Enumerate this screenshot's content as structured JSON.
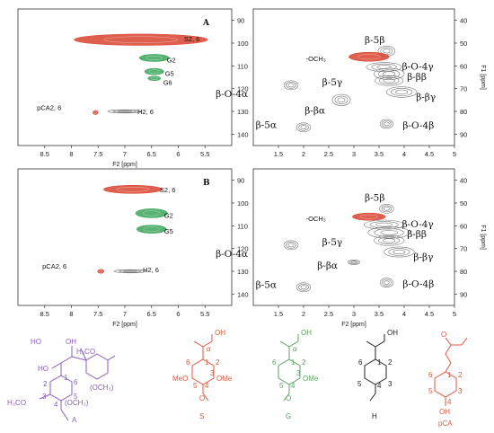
{
  "colors": {
    "red": "#d9432f",
    "green": "#3aa55a",
    "gray": "#8a8a8a",
    "purple": "#8a5cc2",
    "orange": "#e0573a",
    "struct_green": "#5aa463",
    "black": "#222222"
  },
  "chart_data": [
    {
      "type": "scatter",
      "panel_label": "A",
      "xlabel": "F2 [ppm]",
      "ylabel": "",
      "xlim": [
        9.0,
        5.0
      ],
      "ylim": [
        145,
        85
      ],
      "x_ticks": [
        "8.5",
        "8",
        "7.5",
        "7",
        "6.5",
        "6",
        "5.5"
      ],
      "y_ticks": [
        "90",
        "100",
        "110",
        "120",
        "130",
        "140"
      ],
      "peaks": [
        {
          "label": "S2, 6",
          "x": 6.7,
          "y": 98.5,
          "color": "red"
        },
        {
          "label": "G2",
          "x": 6.45,
          "y": 106.5,
          "color": "green"
        },
        {
          "label": "G5",
          "x": 6.45,
          "y": 112.5,
          "color": "green"
        },
        {
          "label": "G6",
          "x": 6.45,
          "y": 115.5,
          "color": "green"
        },
        {
          "label": "pCA2, 6",
          "x": 7.55,
          "y": 130.5,
          "color": "red"
        },
        {
          "label": "H2, 6",
          "x": 7.0,
          "y": 130.0,
          "color": "gray"
        }
      ]
    },
    {
      "type": "scatter",
      "panel_label": "",
      "xlabel": "",
      "ylabel": "F1 [ppm]",
      "xlim": [
        1.0,
        5.0
      ],
      "ylim": [
        95,
        35
      ],
      "x_ticks": [
        "1.5",
        "2",
        "2.5",
        "3",
        "3.5",
        "4",
        "4.5",
        "5"
      ],
      "y_ticks": [
        "40",
        "50",
        "60",
        "70",
        "80",
        "90"
      ],
      "peaks": [
        {
          "label": "β-5β",
          "x": 3.65,
          "y": 53.5,
          "color": "gray"
        },
        {
          "label": "-OCH₃",
          "x": 3.3,
          "y": 56.0,
          "color": "red"
        },
        {
          "label": "β-O-4γ",
          "x": 3.6,
          "y": 60.5,
          "color": "gray"
        },
        {
          "label": "β-ββ",
          "x": 3.7,
          "y": 63.5,
          "color": "gray"
        },
        {
          "label": "β-5γ",
          "x": 3.7,
          "y": 66.5,
          "color": "gray"
        },
        {
          "label": "β-O-4α",
          "x": 1.75,
          "y": 68.5,
          "color": "gray"
        },
        {
          "label": "β-βγ",
          "x": 3.95,
          "y": 71.5,
          "color": "gray"
        },
        {
          "label": "β-βα",
          "x": 2.75,
          "y": 75.0,
          "color": "gray"
        },
        {
          "label": "β-O-4β",
          "x": 3.65,
          "y": 85.5,
          "color": "gray"
        },
        {
          "label": "β-5α",
          "x": 2.0,
          "y": 87.0,
          "color": "gray"
        }
      ]
    },
    {
      "type": "scatter",
      "panel_label": "B",
      "xlabel": "F2 [ppm]",
      "ylabel": "",
      "xlim": [
        9.0,
        5.0
      ],
      "ylim": [
        145,
        85
      ],
      "x_ticks": [
        "8.5",
        "8",
        "7.5",
        "7",
        "6.5",
        "6",
        "5.5"
      ],
      "y_ticks": [
        "90",
        "100",
        "110",
        "120",
        "130",
        "140"
      ],
      "peaks": [
        {
          "label": "S2, 6",
          "x": 6.85,
          "y": 94.0,
          "color": "red"
        },
        {
          "label": "G2",
          "x": 6.5,
          "y": 104.5,
          "color": "green"
        },
        {
          "label": "G5",
          "x": 6.5,
          "y": 111.5,
          "color": "green"
        },
        {
          "label": "pCA2, 6",
          "x": 7.45,
          "y": 130.0,
          "color": "red"
        },
        {
          "label": "H2, 6",
          "x": 6.9,
          "y": 130.0,
          "color": "gray"
        }
      ]
    },
    {
      "type": "scatter",
      "panel_label": "",
      "xlabel": "F2 [ppm]",
      "ylabel": "F1 [ppm]",
      "xlim": [
        1.0,
        5.0
      ],
      "ylim": [
        95,
        35
      ],
      "x_ticks": [
        "1.5",
        "2",
        "2.5",
        "3",
        "3.5",
        "4",
        "4.5",
        "5"
      ],
      "y_ticks": [
        "40",
        "50",
        "60",
        "70",
        "80",
        "90"
      ],
      "peaks": [
        {
          "label": "β-5β",
          "x": 3.65,
          "y": 52.5,
          "color": "gray"
        },
        {
          "label": "-OCH₃",
          "x": 3.3,
          "y": 56.0,
          "color": "red"
        },
        {
          "label": "β-O-4γ",
          "x": 3.6,
          "y": 59.5,
          "color": "gray"
        },
        {
          "label": "β-ββ",
          "x": 3.7,
          "y": 63.0,
          "color": "gray"
        },
        {
          "label": "β-5γ",
          "x": 3.7,
          "y": 66.5,
          "color": "gray"
        },
        {
          "label": "β-O-4α",
          "x": 1.75,
          "y": 68.5,
          "color": "gray"
        },
        {
          "label": "β-βγ",
          "x": 3.9,
          "y": 71.5,
          "color": "gray"
        },
        {
          "label": "β-βα",
          "x": 3.0,
          "y": 76.0,
          "color": "gray"
        },
        {
          "label": "β-O-4β",
          "x": 3.65,
          "y": 85.0,
          "color": "gray"
        },
        {
          "label": "β-5α",
          "x": 2.0,
          "y": 87.0,
          "color": "gray"
        }
      ]
    }
  ],
  "structures": [
    {
      "id": "lignin",
      "caption": "",
      "atoms": [
        "HO",
        "H₃CO",
        "OH",
        "HO",
        "(OCH₃)",
        "H₃CO",
        "(OCH₃)",
        "A",
        "1",
        "2",
        "3",
        "4",
        "5",
        "6"
      ]
    },
    {
      "id": "S",
      "caption": "S",
      "atoms": [
        "OH",
        "α",
        "MeO",
        "OMe",
        "O",
        "1",
        "2",
        "3",
        "4",
        "5",
        "6"
      ]
    },
    {
      "id": "G",
      "caption": "G",
      "atoms": [
        "OH",
        "α",
        "OMe",
        "O",
        "1",
        "2",
        "3",
        "4",
        "5",
        "6"
      ]
    },
    {
      "id": "H",
      "caption": "H",
      "atoms": [
        "OH",
        "1",
        "2",
        "3",
        "4",
        "5",
        "6"
      ]
    },
    {
      "id": "pCA",
      "caption": "pCA",
      "atoms": [
        "O",
        "OH",
        "1",
        "2",
        "3",
        "4",
        "5",
        "6"
      ]
    }
  ]
}
